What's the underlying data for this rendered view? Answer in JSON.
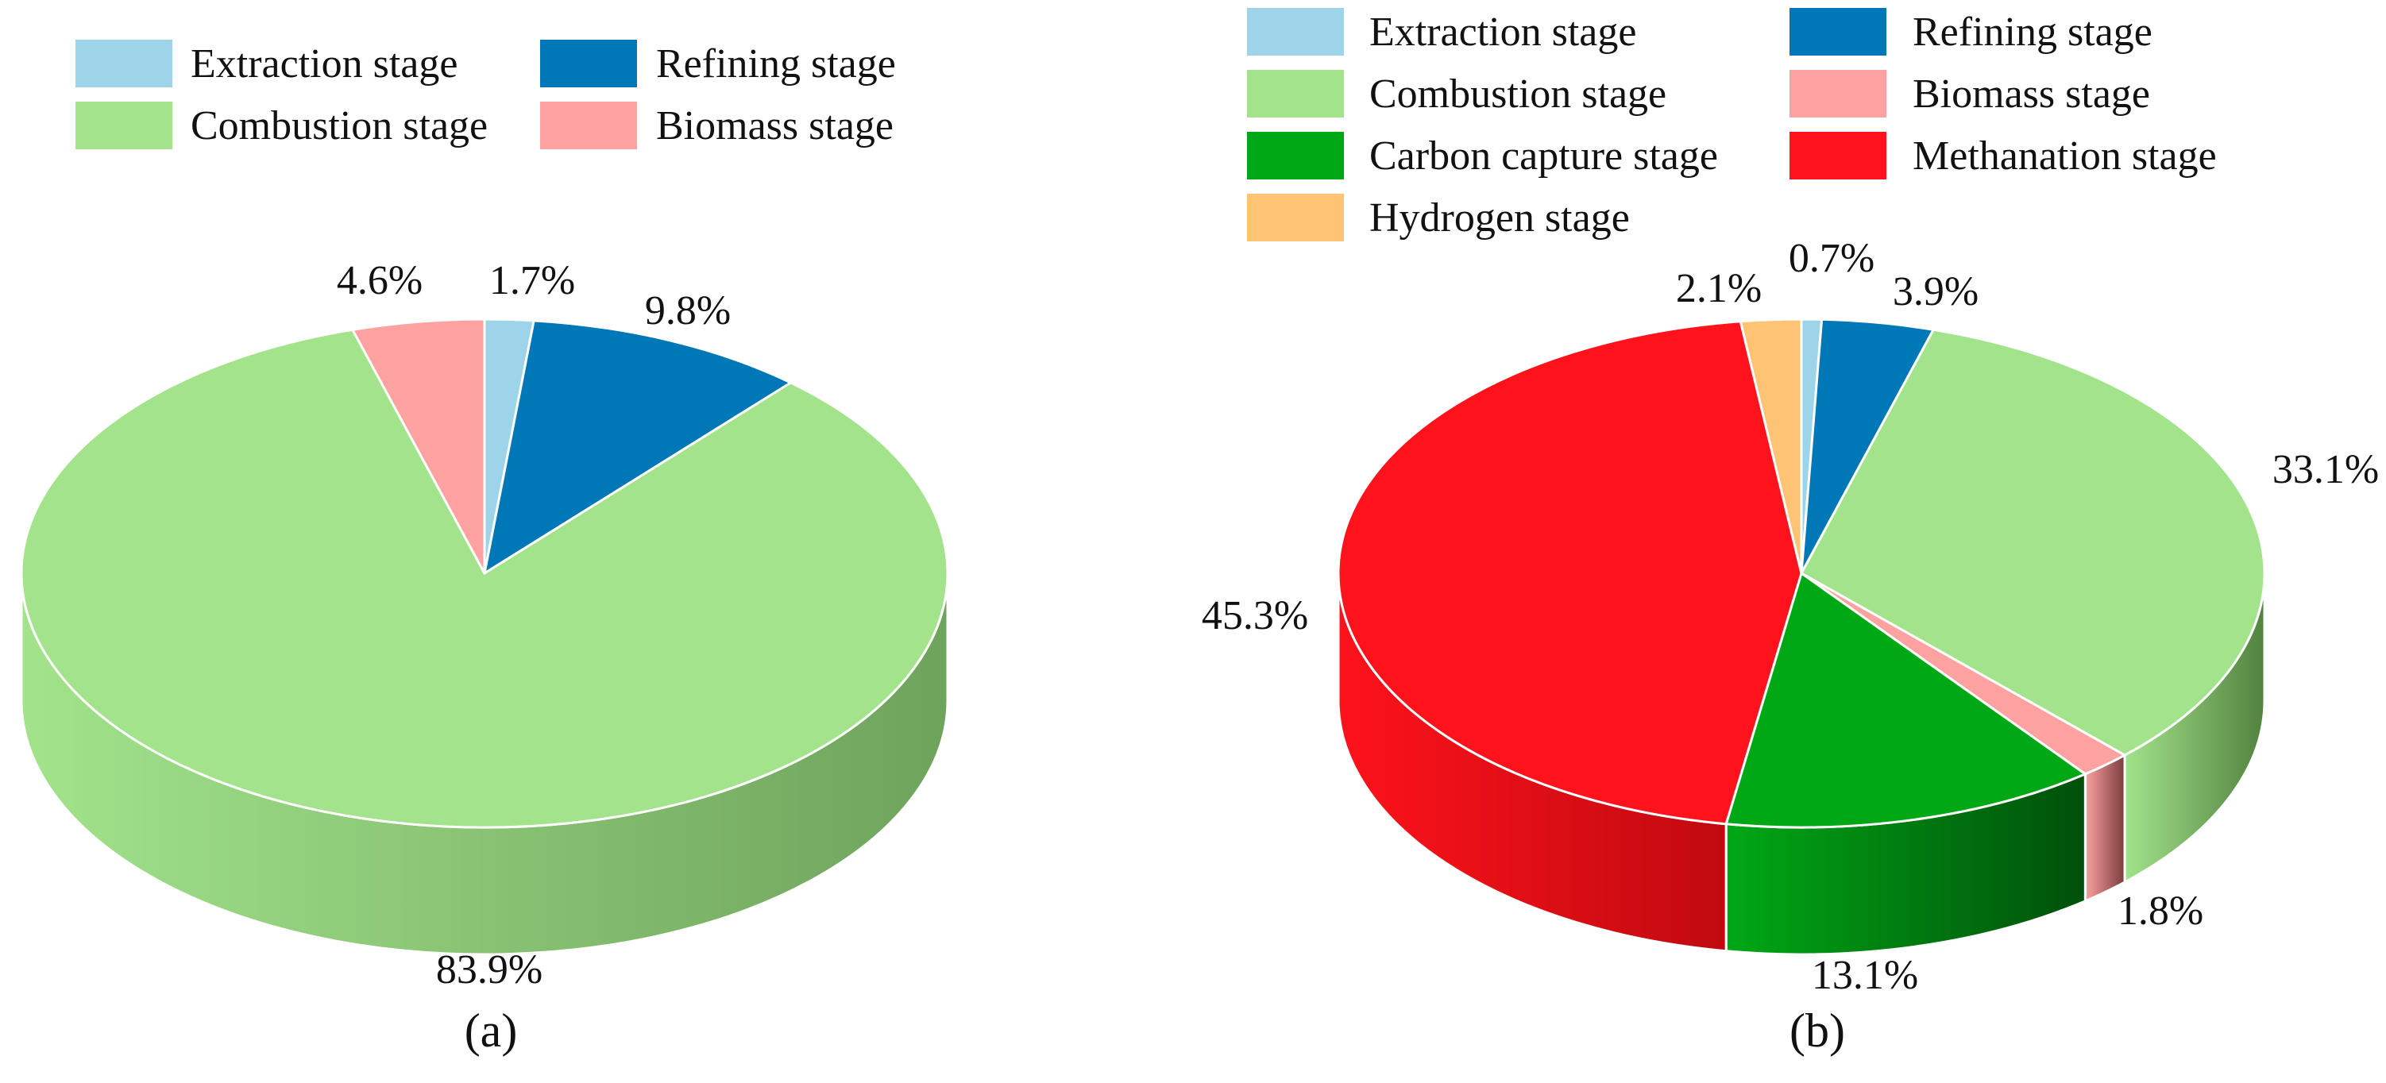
{
  "chart_data": [
    {
      "type": "pie",
      "caption": "(a)",
      "legend": "top",
      "slices": [
        {
          "name": "Extraction stage",
          "value": 1.7,
          "label": "1.7%",
          "color": "#9dd4ea",
          "side": "#6fa6bc"
        },
        {
          "name": "Refining stage",
          "value": 9.8,
          "label": "9.8%",
          "color": "#0077b6",
          "side": "#004f7a"
        },
        {
          "name": "Combustion stage",
          "value": 83.9,
          "label": "83.9%",
          "color": "#a2e38b",
          "side": "#6ea35c"
        },
        {
          "name": "Biomass stage",
          "value": 4.6,
          "label": "4.6%",
          "color": "#fea1a1",
          "side": "#c57272"
        }
      ]
    },
    {
      "type": "pie",
      "caption": "(b)",
      "legend": "top",
      "slices": [
        {
          "name": "Extraction stage",
          "value": 0.7,
          "label": "0.7%",
          "color": "#9dd4ea",
          "side": "#6fa6bc"
        },
        {
          "name": "Refining stage",
          "value": 3.9,
          "label": "3.9%",
          "color": "#0077b6",
          "side": "#004f7a"
        },
        {
          "name": "Combustion stage",
          "value": 33.1,
          "label": "33.1%",
          "color": "#a2e38b",
          "side": "#52823f"
        },
        {
          "name": "Biomass stage",
          "value": 1.8,
          "label": "1.8%",
          "color": "#fea1a1",
          "side": "#7a3d3d"
        },
        {
          "name": "Carbon capture stage",
          "value": 13.1,
          "label": "13.1%",
          "color": "#00a815",
          "side": "#00500a"
        },
        {
          "name": "Methanation stage",
          "value": 45.3,
          "label": "45.3%",
          "color": "#fe121b",
          "side": "#c00a10"
        },
        {
          "name": "Hydrogen stage",
          "value": 2.1,
          "label": "2.1%",
          "color": "#fec473",
          "side": "#c8944a"
        }
      ]
    }
  ]
}
